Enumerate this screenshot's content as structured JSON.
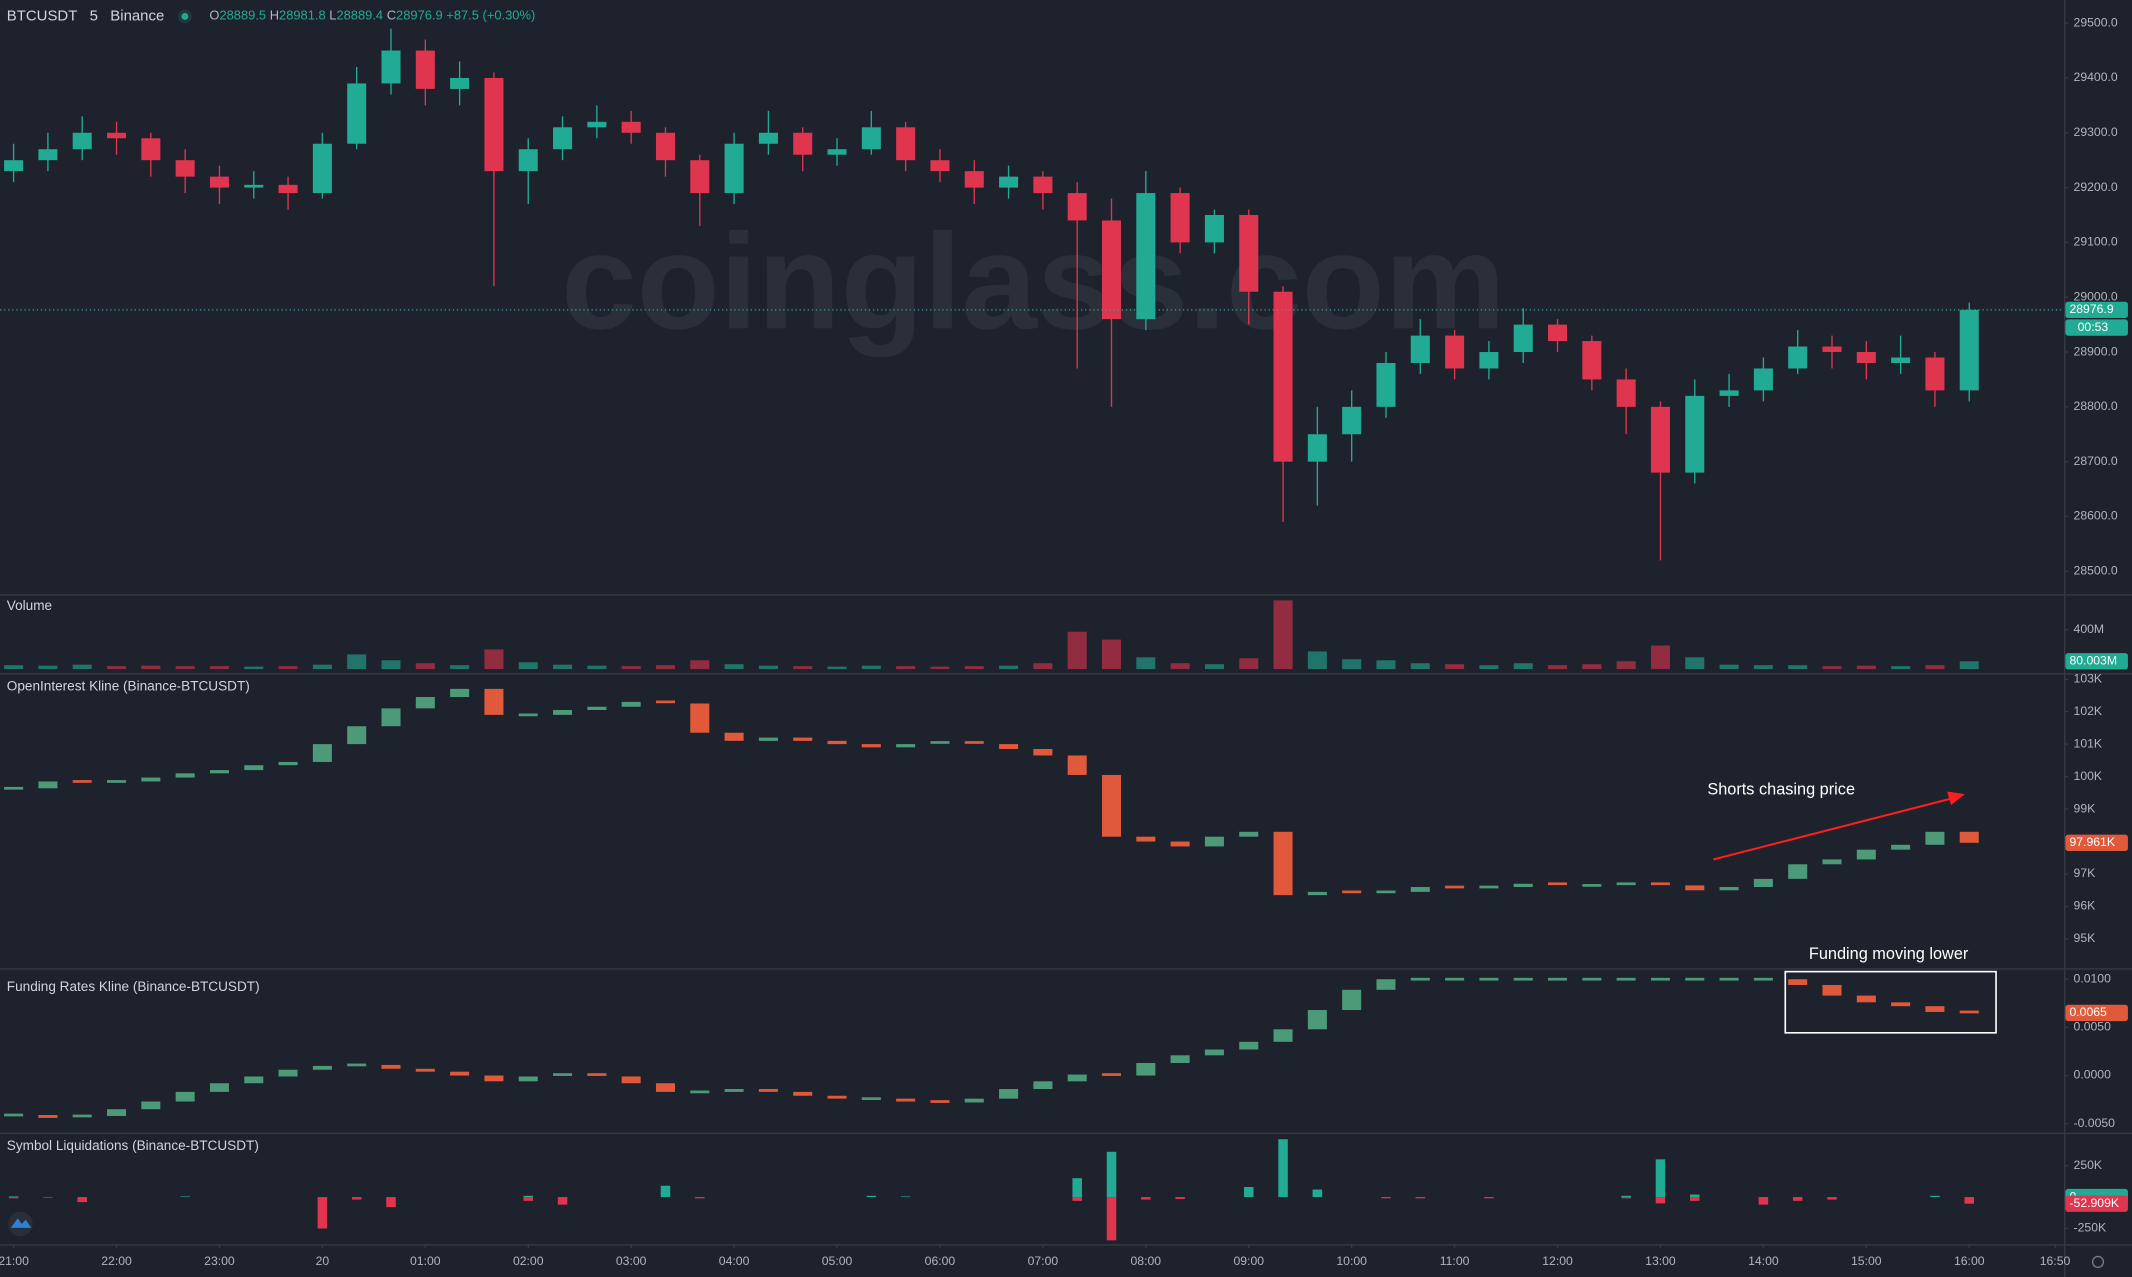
{
  "header": {
    "symbol": "BTCUSDT",
    "interval": "5",
    "exchange": "Binance",
    "legend": [
      {
        "label": "O",
        "value": 28889.5
      },
      {
        "label": "H",
        "value": 28981.8
      },
      {
        "label": "L",
        "value": 28889.4
      },
      {
        "label": "C",
        "value": 28976.9
      }
    ],
    "change_label": "+87.5 (+0.30%)"
  },
  "watermark": "coinglass.com",
  "chart_data": [
    {
      "type": "candlestick",
      "up_color": "#22ab94",
      "down_color": "#e0354f",
      "x": [
        "21:00",
        "21:20",
        "21:40",
        "22:00",
        "22:20",
        "22:40",
        "23:00",
        "23:20",
        "23:40",
        "00:00",
        "00:20",
        "00:40",
        "01:00",
        "01:20",
        "01:40",
        "02:00",
        "02:20",
        "02:40",
        "03:00",
        "03:20",
        "03:40",
        "04:00",
        "04:20",
        "04:40",
        "05:00",
        "05:20",
        "05:40",
        "06:00",
        "06:20",
        "06:40",
        "07:00",
        "07:20",
        "07:40",
        "08:00",
        "08:20",
        "08:40",
        "09:00",
        "09:20",
        "09:40",
        "10:00",
        "10:20",
        "10:40",
        "11:00",
        "11:20",
        "11:40",
        "12:00",
        "12:20",
        "12:40",
        "13:00",
        "13:20",
        "13:40",
        "14:00",
        "14:20",
        "14:40",
        "15:00",
        "15:20",
        "15:40",
        "16:00"
      ],
      "open": [
        29230,
        29250,
        29270,
        29300,
        29290,
        29250,
        29220,
        29200,
        29205,
        29190,
        29280,
        29390,
        29450,
        29380,
        29400,
        29230,
        29270,
        29310,
        29320,
        29300,
        29250,
        29190,
        29280,
        29300,
        29260,
        29270,
        29310,
        29250,
        29230,
        29200,
        29220,
        29190,
        29140,
        28960,
        29190,
        29100,
        29150,
        29010,
        28700,
        28750,
        28800,
        28880,
        28930,
        28870,
        28900,
        28950,
        28920,
        28850,
        28800,
        28680,
        28820,
        28830,
        28870,
        28910,
        28900,
        28880,
        28890,
        28830
      ],
      "high": [
        29280,
        29300,
        29330,
        29320,
        29300,
        29270,
        29240,
        29230,
        29220,
        29300,
        29420,
        29490,
        29470,
        29430,
        29410,
        29290,
        29330,
        29350,
        29340,
        29310,
        29260,
        29300,
        29340,
        29310,
        29290,
        29340,
        29320,
        29270,
        29250,
        29240,
        29230,
        29210,
        29180,
        29230,
        29200,
        29160,
        29160,
        29020,
        28800,
        28830,
        28900,
        28960,
        28940,
        28920,
        28980,
        28960,
        28930,
        28870,
        28810,
        28850,
        28860,
        28890,
        28940,
        28930,
        28920,
        28930,
        28900,
        28990
      ],
      "low": [
        29210,
        29230,
        29250,
        29260,
        29220,
        29190,
        29170,
        29180,
        29160,
        29180,
        29270,
        29370,
        29350,
        29350,
        29020,
        29170,
        29250,
        29290,
        29280,
        29220,
        29130,
        29170,
        29260,
        29230,
        29240,
        29260,
        29230,
        29210,
        29170,
        29180,
        29160,
        28870,
        28800,
        28940,
        29080,
        29080,
        28950,
        28590,
        28620,
        28700,
        28780,
        28860,
        28850,
        28850,
        28880,
        28900,
        28830,
        28750,
        28520,
        28660,
        28800,
        28810,
        28860,
        28870,
        28850,
        28860,
        28800,
        28810
      ],
      "close": [
        29250,
        29270,
        29300,
        29290,
        29250,
        29220,
        29200,
        29205,
        29190,
        29280,
        29390,
        29450,
        29380,
        29400,
        29230,
        29270,
        29310,
        29320,
        29300,
        29250,
        29190,
        29280,
        29300,
        29260,
        29270,
        29310,
        29250,
        29230,
        29200,
        29220,
        29190,
        29140,
        28960,
        29190,
        29100,
        29150,
        29010,
        28700,
        28750,
        28800,
        28880,
        28930,
        28870,
        28900,
        28950,
        28920,
        28850,
        28800,
        28680,
        28820,
        28830,
        28870,
        28910,
        28900,
        28880,
        28890,
        28830,
        28976.9
      ],
      "ylim": [
        28458,
        29542
      ],
      "yticks": [
        {
          "value": 28500,
          "label": "28500.0"
        },
        {
          "value": 28600,
          "label": "28600.0"
        },
        {
          "value": 28700,
          "label": "28700.0"
        },
        {
          "value": 28800,
          "label": "28800.0"
        },
        {
          "value": 28900,
          "label": "28900.0"
        },
        {
          "value": 29000,
          "label": "29000.0"
        },
        {
          "value": 29100,
          "label": "29100.0"
        },
        {
          "value": 29200,
          "label": "29200.0"
        },
        {
          "value": 29300,
          "label": "29300.0"
        },
        {
          "value": 29400,
          "label": "29400.0"
        },
        {
          "value": 29500,
          "label": "29500.0"
        }
      ],
      "xticks": [
        "21:00",
        "22:00",
        "23:00",
        {
          "value": "00:00",
          "label": "20"
        },
        "01:00",
        "02:00",
        "03:00",
        "04:00",
        "05:00",
        "06:00",
        "07:00",
        "08:00",
        "09:00",
        "10:00",
        "11:00",
        "12:00",
        "13:00",
        "14:00",
        "15:00",
        "16:00",
        "16:50"
      ],
      "countdown": "00:53"
    },
    {
      "type": "bar",
      "title": "Volume",
      "up_color": "#22ab94",
      "down_color": "#e0354f",
      "values": [
        40,
        35,
        45,
        30,
        35,
        30,
        30,
        25,
        30,
        45,
        150,
        90,
        60,
        40,
        200,
        70,
        45,
        35,
        30,
        40,
        90,
        50,
        35,
        30,
        25,
        35,
        30,
        25,
        30,
        35,
        60,
        380,
        300,
        120,
        60,
        50,
        110,
        700,
        180,
        100,
        90,
        60,
        50,
        40,
        60,
        40,
        50,
        80,
        240,
        120,
        45,
        40,
        40,
        30,
        35,
        30,
        40,
        80.003
      ],
      "last_label": "80.003M",
      "ylim": [
        0,
        720
      ],
      "yticks": [
        {
          "value": 400,
          "label": "400M"
        }
      ]
    },
    {
      "type": "step",
      "title": "OpenInterest Kline (Binance-BTCUSDT)",
      "up_color": "#4c9a77",
      "down_color": "#e0593a",
      "values": [
        99.64,
        99.85,
        99.8,
        99.85,
        99.97,
        100.1,
        100.2,
        100.35,
        100.45,
        101.0,
        101.55,
        102.1,
        102.45,
        102.7,
        101.9,
        101.9,
        102.05,
        102.15,
        102.3,
        102.25,
        101.35,
        101.1,
        101.2,
        101.1,
        101.0,
        100.9,
        101.0,
        101.05,
        101.0,
        100.85,
        100.65,
        100.05,
        98.15,
        98.0,
        97.85,
        98.15,
        98.3,
        96.35,
        96.45,
        96.4,
        96.45,
        96.6,
        96.55,
        96.6,
        96.7,
        96.65,
        96.65,
        96.7,
        96.65,
        96.5,
        96.6,
        96.85,
        97.3,
        97.45,
        97.75,
        97.9,
        98.3,
        97.961
      ],
      "last_label": "97.961K",
      "ylim": [
        94.1,
        103.1
      ],
      "yticks": [
        {
          "value": 95,
          "label": "95K"
        },
        {
          "value": 96,
          "label": "96K"
        },
        {
          "value": 97,
          "label": "97K"
        },
        {
          "value": 99,
          "label": "99K"
        },
        {
          "value": 100,
          "label": "100K"
        },
        {
          "value": 101,
          "label": "101K"
        },
        {
          "value": 102,
          "label": "102K"
        },
        {
          "value": 103,
          "label": "103K"
        }
      ],
      "annotation": "Shorts chasing price"
    },
    {
      "type": "step",
      "title": "Funding Rates Kline (Binance-BTCUSDT)",
      "up_color": "#4c9a77",
      "down_color": "#e0593a",
      "values": [
        -0.0041,
        -0.0044,
        -0.0042,
        -0.0035,
        -0.0027,
        -0.0017,
        -0.0008,
        -0.0001,
        0.0006,
        0.001,
        0.0011,
        0.0007,
        0.0004,
        0,
        -0.0006,
        -0.0001,
        0.0001,
        -0.0001,
        -0.0008,
        -0.0017,
        -0.0017,
        -0.0014,
        -0.0017,
        -0.0021,
        -0.0024,
        -0.0024,
        -0.0027,
        -0.0028,
        -0.0024,
        -0.0014,
        -0.0006,
        0.0001,
        0,
        0.0013,
        0.0021,
        0.0027,
        0.0035,
        0.0048,
        0.0068,
        0.0089,
        0.01,
        0.01,
        0.01,
        0.01,
        0.01,
        0.01,
        0.01,
        0.01,
        0.01,
        0.01,
        0.01,
        0.01,
        0.0094,
        0.0083,
        0.0076,
        0.0072,
        0.0066,
        0.0065
      ],
      "ylim": [
        -0.0058,
        0.011
      ],
      "yticks": [
        {
          "value": 0.01,
          "label": "0.0100"
        },
        {
          "value": 0.005,
          "label": "0.0050"
        },
        {
          "value": 0,
          "label": "0.0000"
        },
        {
          "value": -0.005,
          "label": "-0.0050"
        }
      ],
      "annotation": "Funding moving lower"
    },
    {
      "type": "bar",
      "title": "Symbol Liquidations (Binance-BTCUSDT)",
      "series": [
        {
          "color": "#22ab94",
          "values": [
            5,
            0,
            0,
            0,
            0,
            5,
            0,
            0,
            0,
            0,
            0,
            0,
            0,
            0,
            0,
            10,
            0,
            0,
            0,
            90,
            0,
            0,
            0,
            0,
            0,
            10,
            5,
            0,
            0,
            0,
            0,
            150,
            360,
            0,
            0,
            0,
            80,
            460,
            60,
            0,
            0,
            0,
            0,
            0,
            0,
            0,
            0,
            10,
            300,
            20,
            0,
            0,
            0,
            0,
            0,
            0,
            10,
            0
          ]
        },
        {
          "color": "#e0354f",
          "values": [
            -10,
            -5,
            -40,
            0,
            0,
            0,
            0,
            0,
            0,
            -250,
            -20,
            -80,
            0,
            0,
            0,
            -30,
            -60,
            0,
            0,
            0,
            -10,
            0,
            0,
            0,
            0,
            0,
            0,
            0,
            0,
            0,
            0,
            -30,
            -344,
            -20,
            -15,
            0,
            0,
            0,
            0,
            0,
            -10,
            -10,
            0,
            -10,
            0,
            0,
            0,
            -10,
            -50,
            -30,
            0,
            -60,
            -30,
            -20,
            0,
            0,
            0,
            -52.909
          ]
        }
      ],
      "last_labels": [
        "0",
        "-52.909K"
      ],
      "ylim": [
        -375,
        479
      ],
      "yticks": [
        {
          "value": 250,
          "label": "250K"
        },
        0,
        {
          "value": -250,
          "label": "-250K"
        }
      ]
    }
  ]
}
